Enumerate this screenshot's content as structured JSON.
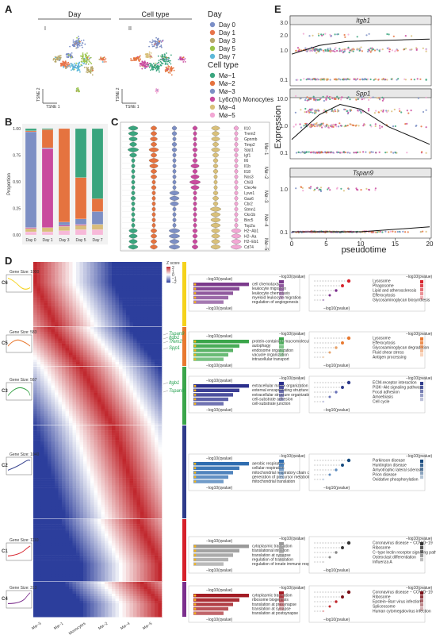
{
  "panels": {
    "a": "A",
    "b": "B",
    "c": "C",
    "d": "D",
    "e": "E"
  },
  "panel_a": {
    "titles": [
      "Day",
      "Cell type"
    ],
    "sub_labels": [
      "I",
      "II"
    ],
    "axis_x": "TSNE 1",
    "axis_y": "TSNE 2",
    "legend_day_title": "Day",
    "legend_day": [
      {
        "label": "Day 0",
        "color": "#7b8fc7"
      },
      {
        "label": "Day 1",
        "color": "#e8744a"
      },
      {
        "label": "Day 3",
        "color": "#b7a86a"
      },
      {
        "label": "Day 5",
        "color": "#9ac44a"
      },
      {
        "label": "Day 7",
        "color": "#5db8d9"
      }
    ],
    "legend_cell_title": "Cell type",
    "legend_cell": [
      {
        "label": "Mø−1",
        "color": "#3aa57e"
      },
      {
        "label": "Mø−2",
        "color": "#e5733f"
      },
      {
        "label": "Mø−3",
        "color": "#7d8fc4"
      },
      {
        "label": "Ly6c(hi) Monocytes",
        "color": "#c94a9e"
      },
      {
        "label": "Mø−4",
        "color": "#d9c07a"
      },
      {
        "label": "Mø−5",
        "color": "#f2a7d4"
      }
    ]
  },
  "chart_data": [
    {
      "type": "bar",
      "stacked": true,
      "categories": [
        "Day 0",
        "Day 1",
        "Day 3",
        "Day 5",
        "Day 7"
      ],
      "ylabel": "Proportion",
      "ylim": [
        0,
        1
      ],
      "yticks": [
        "0.00",
        "0.25",
        "0.50",
        "0.75",
        "1.00"
      ],
      "series": [
        {
          "color": "#f7b9d9",
          "values": [
            0.03,
            0.03,
            0.04,
            0.05,
            0.05
          ]
        },
        {
          "color": "#d9bd7c",
          "values": [
            0.03,
            0.04,
            0.04,
            0.04,
            0.05
          ]
        },
        {
          "color": "#c94a9e",
          "values": [
            0.01,
            0.74,
            0.01,
            0.01,
            0.0
          ]
        },
        {
          "color": "#7d8fc4",
          "values": [
            0.9,
            0.01,
            0.03,
            0.05,
            0.12
          ]
        },
        {
          "color": "#e5733f",
          "values": [
            0.01,
            0.17,
            0.88,
            0.39,
            0.12
          ]
        },
        {
          "color": "#3aa57e",
          "values": [
            0.02,
            0.01,
            0.0,
            0.46,
            0.66
          ]
        }
      ]
    },
    {
      "type": "scatter",
      "title": "Itgb1",
      "ylabel": "Expression",
      "yticks": [
        "0.1",
        "1.0",
        "2.0",
        "3.0"
      ],
      "xlim": [
        0,
        20
      ],
      "trend": [
        [
          0,
          0.45
        ],
        [
          4,
          0.75
        ],
        [
          8,
          0.95
        ],
        [
          12,
          1.0
        ],
        [
          16,
          1.05
        ],
        [
          20,
          1.1
        ]
      ]
    },
    {
      "type": "scatter",
      "title": "Spp1",
      "yticks": [
        "0.1",
        "1.0",
        "10.0"
      ],
      "xlim": [
        0,
        20
      ],
      "trend": [
        [
          0,
          0.3
        ],
        [
          4,
          2.5
        ],
        [
          7,
          6.0
        ],
        [
          10,
          4.0
        ],
        [
          14,
          0.9
        ],
        [
          20,
          0.2
        ]
      ]
    },
    {
      "type": "scatter",
      "title": "Tspan9",
      "xlabel": "pseudotime",
      "yticks": [
        "0.1",
        "1.0"
      ],
      "xticks": [
        "0",
        "5",
        "10",
        "15",
        "20"
      ],
      "xlim": [
        0,
        20
      ],
      "trend": [
        [
          0,
          0.1
        ],
        [
          10,
          0.1
        ],
        [
          20,
          0.13
        ]
      ]
    }
  ],
  "panel_c": {
    "genes": [
      "Il10",
      "Trem2",
      "Gpnmb",
      "Timp2",
      "Spp1",
      "Igf1",
      "Il6",
      "Il1b",
      "Il18",
      "Nos3",
      "Chil3",
      "Clec4e",
      "Lyve1",
      "Gas6",
      "Cbr2",
      "Stmn1",
      "Ckx1b",
      "Birc5",
      "Top2a",
      "H2−Ab1",
      "H2−Aa",
      "H2−Eb1",
      "Cd74"
    ],
    "groups": [
      {
        "label": "Mø−1",
        "color": "#3aa57e"
      },
      {
        "label": "Mø−2",
        "color": "#e5733f"
      },
      {
        "label": "Mø−3",
        "color": "#7d8fc4"
      },
      {
        "label": "Ly6c(hi) Monocytes",
        "color": "#c94a9e"
      },
      {
        "label": "Mø−4",
        "color": "#d9c07a"
      },
      {
        "label": "Mø−5",
        "color": "#f2a7d4"
      }
    ],
    "side_labels": [
      "Mø−1",
      "Mø−2",
      "Mø−3",
      "Mø−4",
      "Mø−5"
    ]
  },
  "panel_d": {
    "legend_title": "Z score",
    "legend_ticks": [
      "2",
      "1",
      "0",
      "−1",
      "−2"
    ],
    "clusters": [
      {
        "id": "C6",
        "size": "Gene Size: 1000",
        "color": "#f5d21b"
      },
      {
        "id": "C5",
        "size": "Gene Size: 583",
        "color": "#e8782f"
      },
      {
        "id": "C3",
        "size": "Gene Size: 567",
        "color": "#3aa54a"
      },
      {
        "id": "C2",
        "size": "Gene Size: 1040",
        "color": "#2f3b8a"
      },
      {
        "id": "C1",
        "size": "Gene Size: 1110",
        "color": "#d6202a"
      },
      {
        "id": "C4",
        "size": "Gene Size: 313",
        "color": "#7b2e8c"
      }
    ],
    "gene_labels": [
      "Tspan9",
      "Itgb1",
      "Trem2",
      "Spp1",
      "Itgb1",
      "Tspan9"
    ],
    "x_labels": [
      "Mø−3",
      "Mø−1",
      "Monocytes",
      "Mø−2",
      "Mø−4",
      "Mø−5"
    ],
    "go_axis": "−log10(qvalue)",
    "kegg_axis": "−log10(pvalue)",
    "go_terms": [
      [
        "cell chemotaxis",
        "leukocyte migration",
        "leukocyte chemotaxis",
        "myeloid leukocyte migration",
        "regulation of angiogenesis"
      ],
      [
        "protein-containing macromolecule",
        "autophagy",
        "endosome organization",
        "vacuole organization",
        "intracellular transport"
      ],
      [
        "extracellular matrix organization",
        "external encapsulating structure organization",
        "extracellular structure organization",
        "cell-substrate adhesion",
        "cell-substrate junction"
      ],
      [
        "aerobic respiration",
        "cellular respiration",
        "mitochondrial respiratory chain complex assembly",
        "generation of precursor metabolites and energy",
        "mitochondrial translation"
      ],
      [
        "cytoplasmic translation",
        "translational initiation",
        "translation at synapse",
        "regulation of translation",
        "regulation of innate immune response"
      ],
      [
        "cytoplasmic translation",
        "ribosome biogenesis",
        "translation at presynapse",
        "translation at synapse",
        "translation at postsynapse"
      ]
    ],
    "kegg_terms": [
      [
        "Lysosome",
        "Phagosome",
        "Lipid and atherosclerosis",
        "Efferocytosis",
        "Glycosaminoglycan biosynthesis"
      ],
      [
        "Lysosome",
        "Efferocytosis",
        "Glycosaminoglycan degradation",
        "Fluid shear stress",
        "Antigen processing"
      ],
      [
        "ECM-receptor interaction",
        "PI3K−Akt signaling pathway",
        "Focal adhesion",
        "Amoebiasis",
        "Cell cycle"
      ],
      [
        "Parkinson disease",
        "Huntington disease",
        "Amyotrophic lateral sclerosis",
        "Prion disease",
        "Oxidative phosphorylation"
      ],
      [
        "Coronavirus disease − COVID−19",
        "Ribosome",
        "C−type lectin receptor signaling pathway",
        "Osteoclast differentiation",
        "Influenza A"
      ],
      [
        "Coronavirus disease − COVID−19",
        "Ribosome",
        "Epstein−Barr virus infection",
        "Spliceosome",
        "Human cytomegalovirus infection"
      ]
    ]
  },
  "panel_e": {
    "x_axis_label": "pseudotime",
    "y_axis_label": "Expression"
  }
}
